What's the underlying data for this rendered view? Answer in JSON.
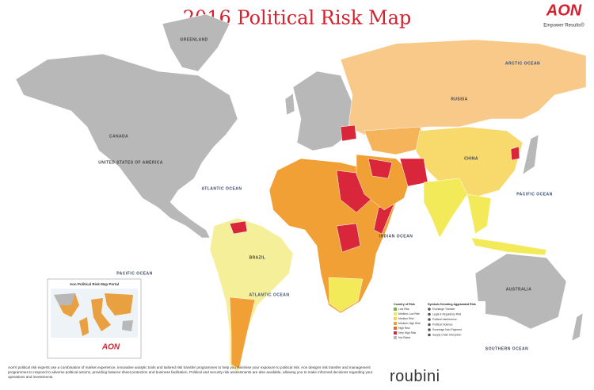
{
  "header": {
    "title": "2016 Political Risk Map",
    "brand": "AON",
    "tagline": "Empower Results®"
  },
  "map_labels": {
    "arctic": "ARCTIC OCEAN",
    "atlantic": "ATLANTIC OCEAN",
    "atlantic_south": "ATLANTIC OCEAN",
    "pacific_east": "PACIFIC OCEAN",
    "pacific_west": "PACIFIC OCEAN",
    "indian": "INDIAN OCEAN",
    "southern": "SOUTHERN OCEAN",
    "greenland": "GREENLAND",
    "canada": "CANADA",
    "usa": "UNITED STATES OF AMERICA",
    "russia": "RUSSIA",
    "china": "CHINA",
    "brazil": "BRAZIL",
    "australia": "AUSTRALIA"
  },
  "legend": {
    "title": "Country of Risk",
    "items": [
      {
        "name": "Low Risk",
        "color": "#7cb342"
      },
      {
        "name": "Medium-Low Risk",
        "color": "#f3ea5a"
      },
      {
        "name": "Medium Risk",
        "color": "#f8d060"
      },
      {
        "name": "Medium-High Risk",
        "color": "#f0a035"
      },
      {
        "name": "High Risk",
        "color": "#e8682a"
      },
      {
        "name": "Very High Risk",
        "color": "#d9263a"
      },
      {
        "name": "Not Rated",
        "color": "#b8b8b8"
      }
    ]
  },
  "symbols": {
    "title": "Symbols Denoting Aggravated Risk",
    "items": [
      "Exchange Transfer",
      "Legal & Regulatory Risk",
      "Political Interference",
      "Political Violence",
      "Sovereign Non-Payment",
      "Supply Chain Disruption"
    ]
  },
  "inset": {
    "title": "Aon Political Risk Map Portal",
    "brand": "AON"
  },
  "footer": {
    "text": "Aon's political risk experts use a combination of market experience, innovative analytic tools and tailored risk transfer programmes to help you minimise your exposure to political risk. Aon designs risk transfer and management programmes to respond to adverse political actions, providing balance sheet protection and business facilitation. Political and security risk assessments are also available, allowing you to make informed decisions regarding your operations and investments.",
    "partner": "roubini"
  }
}
